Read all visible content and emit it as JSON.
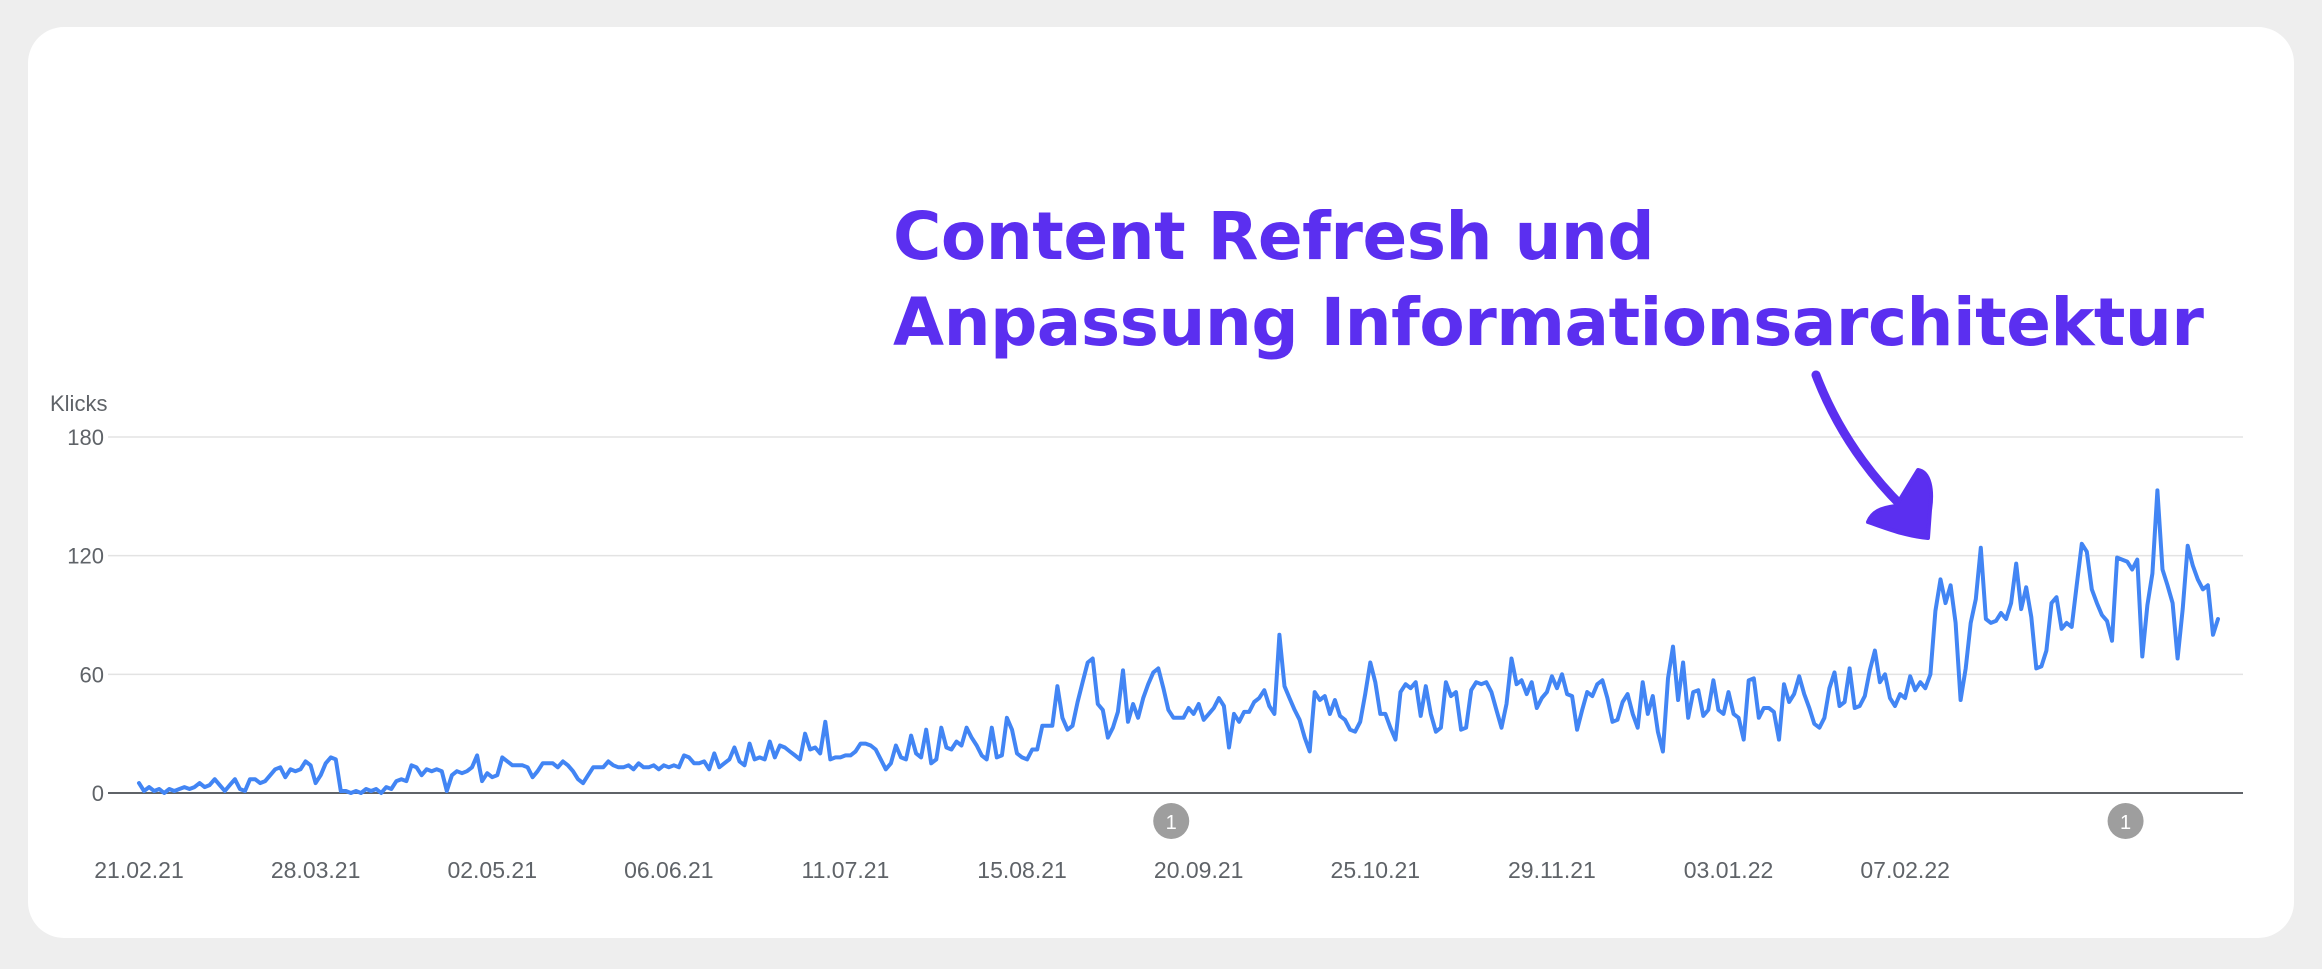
{
  "annotation": {
    "line1": "Content Refresh und",
    "line2": "Anpassung Informationsarchitektur",
    "color": "#5b2ff0"
  },
  "chart_data": {
    "type": "line",
    "ylabel": "Klicks",
    "ylim": [
      0,
      180
    ],
    "yticks": [
      0,
      60,
      120,
      180
    ],
    "grid": true,
    "x_tick_labels": [
      "21.02.21",
      "28.03.21",
      "02.05.21",
      "06.06.21",
      "11.07.21",
      "15.08.21",
      "20.09.21",
      "25.10.21",
      "29.11.21",
      "03.01.22",
      "07.02.22"
    ],
    "x_start": "21.02.21",
    "series": [
      {
        "color": "#4285f4",
        "values": [
          5,
          1,
          3,
          1,
          2,
          0,
          2,
          1,
          2,
          3,
          2,
          3,
          5,
          3,
          4,
          7,
          4,
          1,
          4,
          7,
          2,
          1,
          7,
          7,
          5,
          6,
          9,
          12,
          13,
          8,
          12,
          11,
          12,
          16,
          14,
          5,
          9,
          15,
          18,
          17,
          1,
          1,
          0,
          1,
          0,
          2,
          1,
          2,
          0,
          3,
          2,
          6,
          7,
          6,
          14,
          13,
          9,
          12,
          11,
          12,
          11,
          1,
          9,
          11,
          10,
          11,
          13,
          19,
          6,
          10,
          8,
          9,
          18,
          16,
          14,
          14,
          14,
          13,
          8,
          11,
          15,
          15,
          15,
          13,
          16,
          14,
          11,
          7,
          5,
          9,
          13,
          13,
          13,
          16,
          14,
          13,
          13,
          14,
          12,
          15,
          13,
          13,
          14,
          12,
          14,
          13,
          14,
          13,
          19,
          18,
          15,
          15,
          16,
          12,
          20,
          13,
          15,
          17,
          23,
          16,
          14,
          25,
          17,
          18,
          17,
          26,
          18,
          24,
          23,
          21,
          19,
          17,
          30,
          22,
          23,
          20,
          36,
          17,
          18,
          18,
          19,
          19,
          21,
          25,
          25,
          24,
          22,
          17,
          12,
          15,
          24,
          18,
          17,
          29,
          20,
          18,
          32,
          15,
          17,
          33,
          23,
          22,
          26,
          24,
          33,
          28,
          24,
          19,
          17,
          33,
          18,
          19,
          38,
          32,
          20,
          18,
          17,
          22,
          22,
          34,
          34,
          34,
          54,
          38,
          32,
          34,
          46,
          56,
          66,
          68,
          45,
          42,
          28,
          33,
          41,
          62,
          36,
          45,
          38,
          48,
          55,
          61,
          63,
          53,
          42,
          38,
          38,
          38,
          43,
          40,
          45,
          37,
          40,
          43,
          48,
          44,
          23,
          40,
          36,
          41,
          41,
          46,
          48,
          52,
          44,
          40,
          80,
          54,
          48,
          42,
          37,
          28,
          21,
          51,
          47,
          49,
          40,
          47,
          39,
          37,
          32,
          31,
          36,
          50,
          66,
          56,
          40,
          40,
          33,
          27,
          51,
          55,
          53,
          56,
          39,
          54,
          40,
          31,
          33,
          56,
          49,
          51,
          32,
          33,
          52,
          56,
          55,
          56,
          51,
          42,
          33,
          45,
          68,
          55,
          57,
          50,
          56,
          43,
          48,
          51,
          59,
          53,
          60,
          50,
          49,
          32,
          42,
          51,
          49,
          55,
          57,
          48,
          36,
          37,
          46,
          50,
          40,
          33,
          56,
          40,
          49,
          31,
          21,
          58,
          74,
          47,
          66,
          38,
          51,
          52,
          39,
          42,
          57,
          42,
          40,
          51,
          40,
          38,
          27,
          57,
          58,
          38,
          43,
          43,
          41,
          27,
          55,
          46,
          50,
          59,
          50,
          43,
          35,
          33,
          38,
          53,
          61,
          44,
          46,
          63,
          43,
          44,
          49,
          62,
          72,
          56,
          60,
          48,
          44,
          50,
          48,
          59,
          52,
          56,
          53,
          60,
          92,
          108,
          96,
          105,
          86,
          47,
          63,
          86,
          98,
          124,
          88,
          86,
          87,
          91,
          88,
          96,
          116,
          93,
          104,
          89,
          63,
          64,
          72,
          96,
          99,
          83,
          86,
          84,
          105,
          126,
          122,
          103,
          96,
          90,
          87,
          77,
          119,
          118,
          117,
          113,
          118,
          69,
          95,
          111,
          153,
          113,
          105,
          96,
          68,
          93,
          125,
          115,
          108,
          103,
          105,
          80,
          88
        ]
      }
    ],
    "event_markers": [
      {
        "label": "1",
        "x_fraction": 0.498
      },
      {
        "label": "1",
        "x_fraction": 0.945
      }
    ]
  }
}
